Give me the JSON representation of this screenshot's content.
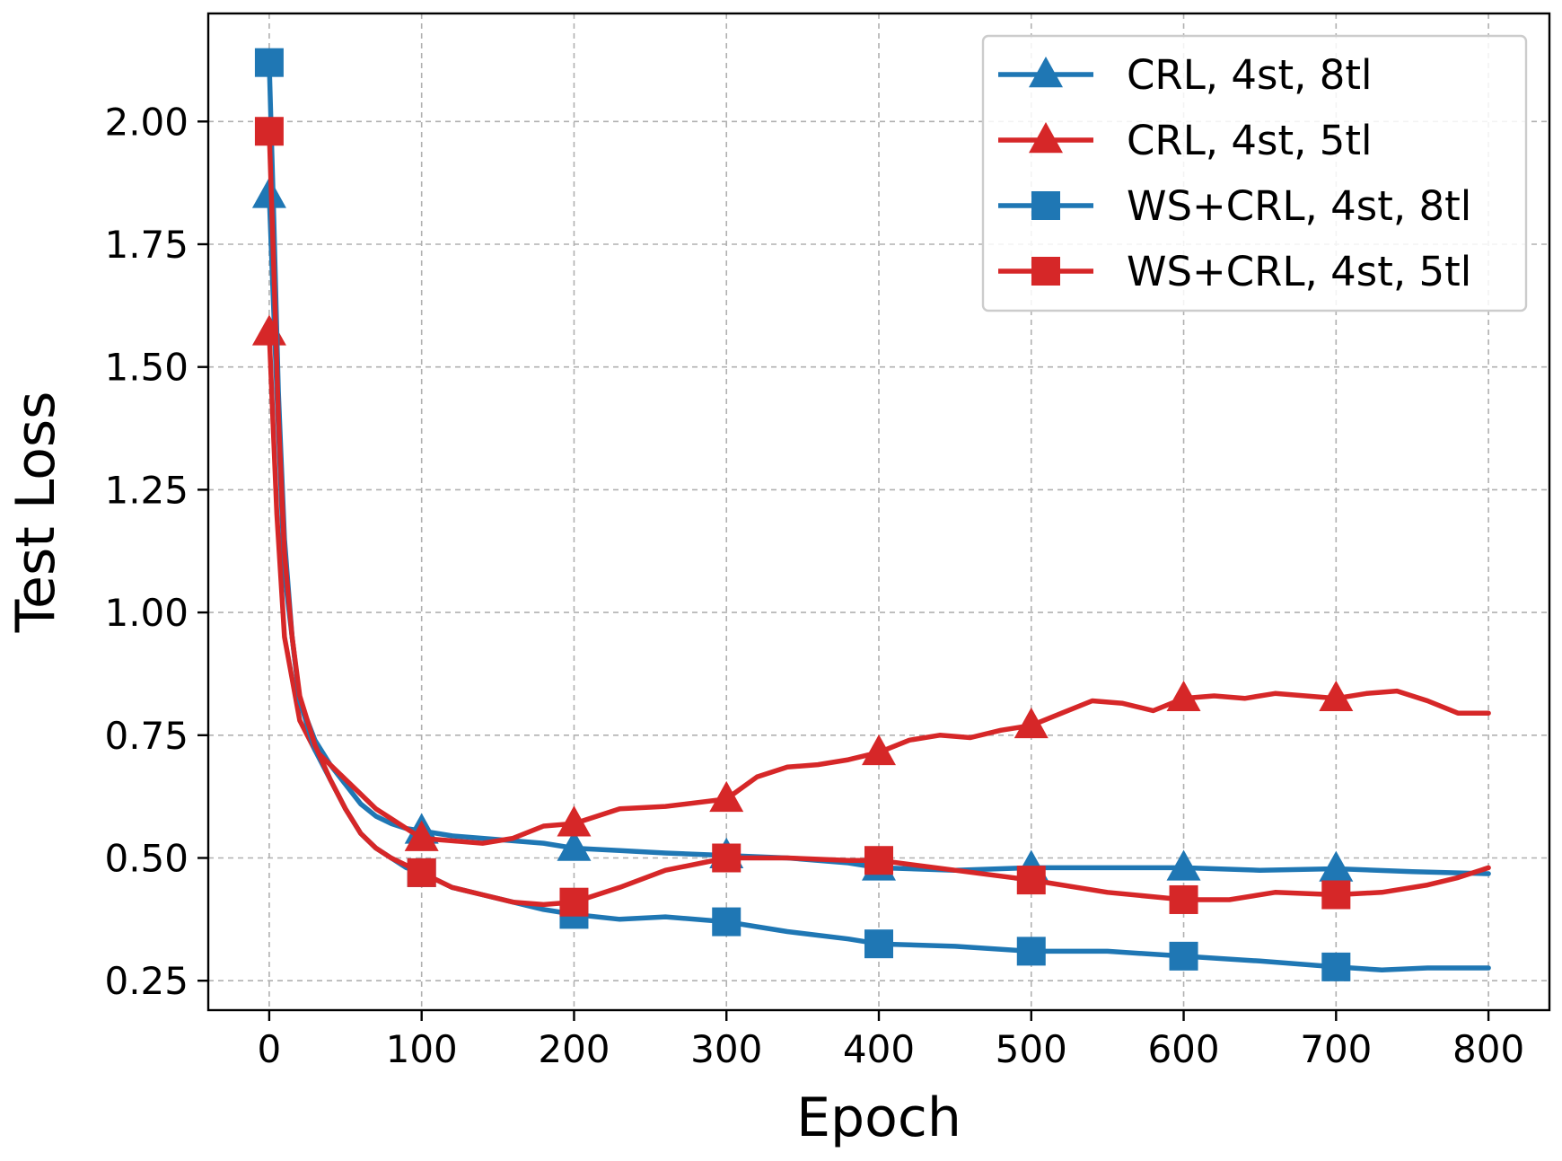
{
  "chart_data": {
    "type": "line",
    "xlabel": "Epoch",
    "ylabel": "Test Loss",
    "xlim": [
      -40,
      840
    ],
    "ylim": [
      0.19,
      2.22
    ],
    "xticks": [
      0,
      100,
      200,
      300,
      400,
      500,
      600,
      700,
      800
    ],
    "xtick_labels": [
      "0",
      "100",
      "200",
      "300",
      "400",
      "500",
      "600",
      "700",
      "800"
    ],
    "yticks": [
      0.25,
      0.5,
      0.75,
      1.0,
      1.25,
      1.5,
      1.75,
      2.0
    ],
    "ytick_labels": [
      "0.25",
      "0.50",
      "0.75",
      "1.00",
      "1.25",
      "1.50",
      "1.75",
      "2.00"
    ],
    "grid": true,
    "legend_position": "top-right",
    "colors": {
      "blue": "#1f77b4",
      "red": "#d62728"
    },
    "series": [
      {
        "name": "CRL, 4st, 8tl",
        "color": "#1f77b4",
        "marker": "triangle",
        "x": [
          0,
          5,
          10,
          20,
          30,
          40,
          50,
          60,
          70,
          80,
          90,
          100,
          120,
          140,
          160,
          180,
          200,
          230,
          260,
          300,
          340,
          380,
          400,
          450,
          500,
          550,
          600,
          650,
          700,
          750,
          800
        ],
        "y": [
          1.85,
          1.45,
          1.08,
          0.82,
          0.74,
          0.69,
          0.65,
          0.61,
          0.585,
          0.57,
          0.56,
          0.555,
          0.545,
          0.54,
          0.535,
          0.53,
          0.52,
          0.515,
          0.51,
          0.505,
          0.5,
          0.49,
          0.48,
          0.475,
          0.48,
          0.48,
          0.48,
          0.475,
          0.478,
          0.472,
          0.468
        ],
        "markers_x": [
          0,
          100,
          200,
          300,
          400,
          500,
          600,
          700
        ],
        "markers_y": [
          1.85,
          0.555,
          0.52,
          0.505,
          0.48,
          0.48,
          0.48,
          0.478
        ]
      },
      {
        "name": "CRL, 4st, 5tl",
        "color": "#d62728",
        "marker": "triangle",
        "x": [
          0,
          5,
          10,
          20,
          30,
          40,
          50,
          60,
          70,
          80,
          90,
          100,
          120,
          140,
          160,
          180,
          200,
          230,
          260,
          300,
          320,
          340,
          360,
          380,
          400,
          420,
          440,
          460,
          480,
          500,
          520,
          540,
          560,
          580,
          600,
          620,
          640,
          660,
          680,
          700,
          720,
          740,
          760,
          780,
          800
        ],
        "y": [
          1.57,
          1.2,
          0.95,
          0.78,
          0.72,
          0.69,
          0.66,
          0.63,
          0.6,
          0.58,
          0.56,
          0.54,
          0.535,
          0.53,
          0.54,
          0.565,
          0.57,
          0.6,
          0.605,
          0.62,
          0.665,
          0.685,
          0.69,
          0.7,
          0.715,
          0.74,
          0.75,
          0.745,
          0.76,
          0.77,
          0.795,
          0.82,
          0.815,
          0.8,
          0.825,
          0.83,
          0.825,
          0.835,
          0.83,
          0.825,
          0.835,
          0.84,
          0.82,
          0.795,
          0.795
        ],
        "markers_x": [
          0,
          100,
          200,
          300,
          400,
          500,
          600,
          700
        ],
        "markers_y": [
          1.57,
          0.54,
          0.57,
          0.62,
          0.715,
          0.77,
          0.825,
          0.825
        ]
      },
      {
        "name": "WS+CRL, 4st, 8tl",
        "color": "#1f77b4",
        "marker": "square",
        "x": [
          0,
          3,
          6,
          10,
          15,
          20,
          30,
          40,
          50,
          60,
          70,
          80,
          90,
          100,
          120,
          140,
          160,
          180,
          200,
          230,
          260,
          300,
          340,
          380,
          400,
          450,
          500,
          550,
          600,
          650,
          700,
          730,
          760,
          800
        ],
        "y": [
          2.12,
          1.8,
          1.45,
          1.15,
          0.95,
          0.82,
          0.72,
          0.66,
          0.6,
          0.55,
          0.52,
          0.5,
          0.48,
          0.47,
          0.44,
          0.425,
          0.41,
          0.395,
          0.385,
          0.375,
          0.38,
          0.37,
          0.35,
          0.335,
          0.325,
          0.32,
          0.31,
          0.31,
          0.3,
          0.29,
          0.278,
          0.272,
          0.276,
          0.276
        ],
        "markers_x": [
          0,
          100,
          200,
          300,
          400,
          500,
          600,
          700
        ],
        "markers_y": [
          2.12,
          0.47,
          0.385,
          0.37,
          0.325,
          0.31,
          0.3,
          0.278
        ]
      },
      {
        "name": "WS+CRL, 4st, 5tl",
        "color": "#d62728",
        "marker": "square",
        "x": [
          0,
          3,
          6,
          10,
          15,
          20,
          30,
          40,
          50,
          60,
          70,
          80,
          90,
          100,
          120,
          140,
          160,
          180,
          200,
          230,
          260,
          300,
          340,
          380,
          400,
          450,
          500,
          550,
          600,
          630,
          660,
          700,
          730,
          760,
          780,
          800
        ],
        "y": [
          1.98,
          1.7,
          1.4,
          1.12,
          0.95,
          0.83,
          0.73,
          0.66,
          0.6,
          0.55,
          0.52,
          0.5,
          0.485,
          0.47,
          0.44,
          0.425,
          0.41,
          0.405,
          0.41,
          0.44,
          0.475,
          0.5,
          0.5,
          0.495,
          0.495,
          0.475,
          0.455,
          0.43,
          0.415,
          0.415,
          0.43,
          0.425,
          0.43,
          0.445,
          0.46,
          0.48
        ],
        "markers_x": [
          0,
          100,
          200,
          300,
          400,
          500,
          600,
          700
        ],
        "markers_y": [
          1.98,
          0.47,
          0.41,
          0.5,
          0.495,
          0.455,
          0.415,
          0.425
        ]
      }
    ]
  }
}
